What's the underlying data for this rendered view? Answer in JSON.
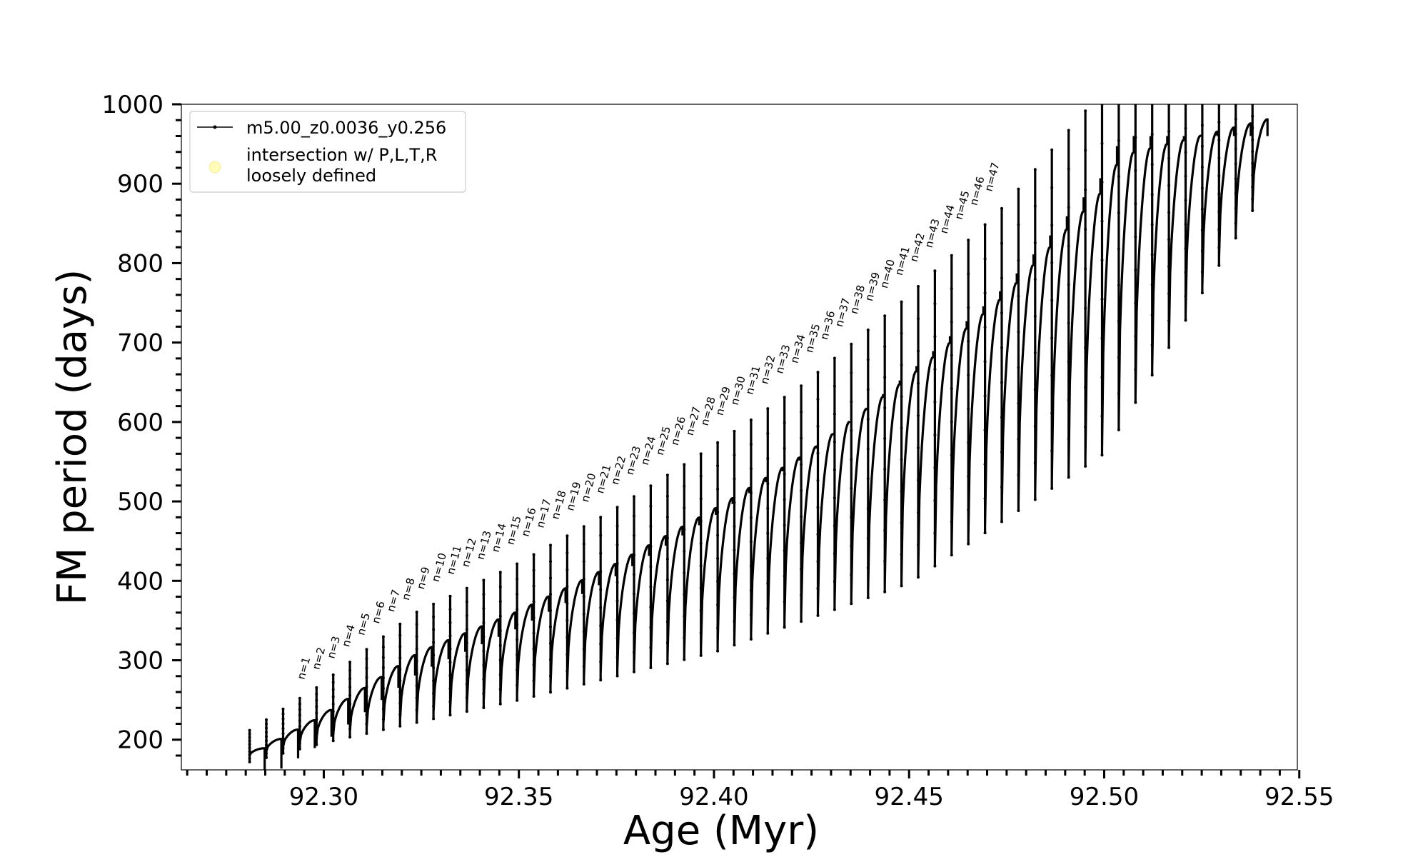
{
  "chart_data": {
    "type": "line",
    "xlabel": "Age (Myr)",
    "ylabel": "FM period (days)",
    "xlim": [
      92.2635,
      92.5495
    ],
    "ylim": [
      162,
      1000
    ],
    "x_ticks": [
      "92.30",
      "92.35",
      "92.40",
      "92.45",
      "92.50",
      "92.55"
    ],
    "x_tick_values": [
      92.3,
      92.35,
      92.4,
      92.45,
      92.5,
      92.55
    ],
    "x_minor_step": 0.005,
    "y_ticks": [
      "200",
      "300",
      "400",
      "500",
      "600",
      "700",
      "800",
      "900",
      "1000"
    ],
    "y_tick_values": [
      200,
      300,
      400,
      500,
      600,
      700,
      800,
      900,
      1000
    ],
    "y_minor_step": 20,
    "grid": false,
    "legend_position": "top-left",
    "legend": [
      {
        "label": "m5.00_z0.0036_y0.256",
        "marker": "line-dot",
        "color": "#000000"
      },
      {
        "label": "intersection w/ P,L,T,R loosely defined",
        "marker": "circle",
        "color": "#fffcba"
      }
    ],
    "series": [
      {
        "name": "m5.00_z0.0036_y0.256",
        "color": "#000000",
        "x_start": 92.281,
        "x_end": 92.538,
        "pulse_count": 61,
        "trend_points": [
          {
            "x": 92.281,
            "y": 178
          },
          {
            "x": 92.3,
            "y": 235
          },
          {
            "x": 92.325,
            "y": 325
          },
          {
            "x": 92.35,
            "y": 380
          },
          {
            "x": 92.375,
            "y": 445
          },
          {
            "x": 92.4,
            "y": 520
          },
          {
            "x": 92.425,
            "y": 600
          },
          {
            "x": 92.45,
            "y": 700
          },
          {
            "x": 92.475,
            "y": 810
          },
          {
            "x": 92.5,
            "y": 950
          },
          {
            "x": 92.505,
            "y": 1000
          }
        ],
        "floor_points": [
          {
            "x": 92.281,
            "y": 172
          },
          {
            "x": 92.3,
            "y": 196
          },
          {
            "x": 92.35,
            "y": 250
          },
          {
            "x": 92.4,
            "y": 310
          },
          {
            "x": 92.45,
            "y": 397
          },
          {
            "x": 92.5,
            "y": 560
          },
          {
            "x": 92.538,
            "y": 866
          }
        ]
      }
    ],
    "annotations": {
      "labels": [
        "n=1",
        "n=2",
        "n=3",
        "n=4",
        "n=5",
        "n=6",
        "n=7",
        "n=8",
        "n=9",
        "n=10",
        "n=11",
        "n=12",
        "n=13",
        "n=14",
        "n=15",
        "n=16",
        "n=17",
        "n=18",
        "n=19",
        "n=20",
        "n=21",
        "n=22",
        "n=23",
        "n=24",
        "n=25",
        "n=26",
        "n=27",
        "n=28",
        "n=29",
        "n=30",
        "n=31",
        "n=32",
        "n=33",
        "n=34",
        "n=35",
        "n=36",
        "n=37",
        "n=38",
        "n=39",
        "n=40",
        "n=41",
        "n=42",
        "n=43",
        "n=44",
        "n=45",
        "n=46",
        "n=47"
      ],
      "first_x": 92.295,
      "step_x": 0.00383
    }
  }
}
